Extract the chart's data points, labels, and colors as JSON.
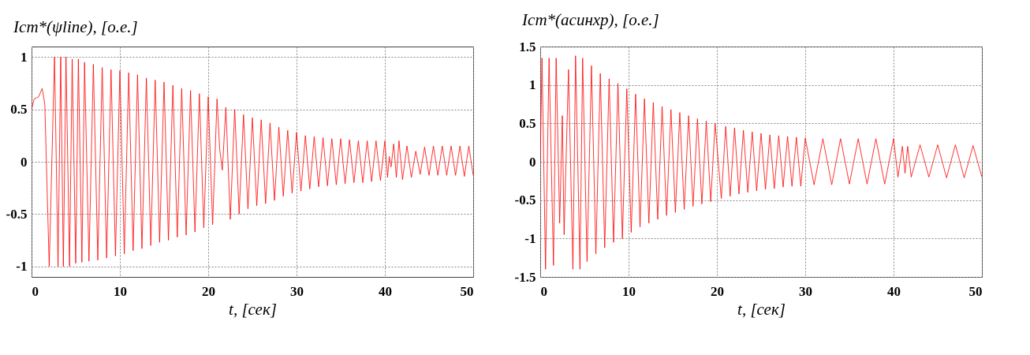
{
  "chart_data": [
    {
      "type": "line",
      "ylabel": "Icm*(ψline), [о.е.]",
      "xlabel": "t, [сек]",
      "xlim": [
        0,
        50
      ],
      "xticks": [
        0,
        10,
        20,
        30,
        40,
        50
      ],
      "ylim": [
        -1.1,
        1.1
      ],
      "yticks": [
        -1,
        -0.5,
        0,
        0.5,
        1
      ],
      "grid": true,
      "series": [
        {
          "color": "#ff0000",
          "x": [
            0,
            0.3,
            0.8,
            1.2,
            1.5,
            2.0,
            2.6,
            3.0,
            3.3,
            3.6,
            3.9,
            4.3,
            4.6,
            5.0,
            5.3,
            5.7,
            6.0,
            6.5,
            7.0,
            7.5,
            8.0,
            8.5,
            9.0,
            9.5,
            10,
            10.5,
            11,
            11.5,
            12,
            12.5,
            13,
            13.5,
            14,
            14.5,
            15,
            15.5,
            16,
            16.5,
            17,
            17.5,
            18,
            18.5,
            19,
            19.5,
            20,
            20.5,
            21,
            21.3,
            21.6,
            22,
            22.5,
            23,
            23.5,
            24,
            24.5,
            25,
            25.5,
            26,
            26.5,
            27,
            27.5,
            28,
            28.5,
            29,
            29.5,
            30,
            30.5,
            31,
            31.5,
            32,
            32.5,
            33,
            33.5,
            34,
            34.5,
            35,
            35.5,
            36,
            36.5,
            37,
            37.5,
            38,
            38.5,
            39,
            39.5,
            40,
            40.3,
            40.5,
            40.7,
            41,
            41.3,
            41.6,
            42,
            42.5,
            43,
            43.5,
            44,
            44.5,
            45,
            45.5,
            46,
            46.5,
            47,
            47.5,
            48,
            48.5,
            49,
            49.5,
            50
          ],
          "values": [
            0.5,
            0.6,
            0.62,
            0.7,
            0.55,
            -1.0,
            1.0,
            -1.0,
            1.0,
            -1.0,
            1.0,
            -1.0,
            0.98,
            -0.97,
            0.98,
            -0.96,
            0.95,
            -0.95,
            0.93,
            -0.94,
            0.9,
            -0.92,
            0.88,
            -0.9,
            0.87,
            -0.88,
            0.85,
            -0.85,
            0.83,
            -0.83,
            0.8,
            -0.8,
            0.78,
            -0.77,
            0.76,
            -0.75,
            0.73,
            -0.72,
            0.7,
            -0.7,
            0.68,
            -0.67,
            0.65,
            -0.63,
            0.62,
            -0.6,
            0.6,
            0.12,
            -0.08,
            0.52,
            -0.55,
            0.5,
            -0.5,
            0.45,
            -0.45,
            0.42,
            -0.42,
            0.4,
            -0.4,
            0.37,
            -0.37,
            0.33,
            -0.33,
            0.3,
            -0.3,
            0.28,
            -0.28,
            0.25,
            -0.26,
            0.24,
            -0.24,
            0.23,
            -0.23,
            0.22,
            -0.22,
            0.22,
            -0.21,
            0.21,
            -0.2,
            0.2,
            -0.2,
            0.2,
            -0.19,
            0.2,
            -0.18,
            0.2,
            -0.15,
            0.05,
            -0.05,
            0.17,
            -0.15,
            0.2,
            -0.17,
            0.15,
            -0.15,
            0.1,
            -0.12,
            0.14,
            -0.13,
            0.15,
            -0.13,
            0.15,
            -0.13,
            0.15,
            -0.13,
            0.15,
            -0.14,
            0.15,
            -0.13
          ]
        }
      ]
    },
    {
      "type": "line",
      "ylabel": "Icm*(асинхр), [о.е.]",
      "xlabel": "t, [сек]",
      "xlim": [
        0,
        50
      ],
      "xticks": [
        0,
        10,
        20,
        30,
        40,
        50
      ],
      "ylim": [
        -1.5,
        1.5
      ],
      "yticks": [
        -1.5,
        -1,
        -0.5,
        0,
        0.5,
        1,
        1.5
      ],
      "grid": true,
      "series": [
        {
          "color": "#ff0000",
          "x": [
            0,
            0.2,
            0.6,
            1.0,
            1.5,
            1.8,
            2.2,
            2.5,
            2.7,
            3.2,
            3.7,
            4.0,
            4.5,
            4.8,
            5.3,
            5.8,
            6.3,
            6.8,
            7.3,
            7.8,
            8.3,
            8.8,
            9.3,
            9.8,
            10.3,
            10.8,
            11.3,
            11.8,
            12.3,
            12.8,
            13.3,
            13.8,
            14.3,
            14.8,
            15.3,
            15.8,
            16.3,
            16.8,
            17.3,
            17.8,
            18.3,
            18.8,
            19.3,
            19.8,
            20.5,
            21,
            21.5,
            22,
            22.5,
            23,
            23.5,
            24,
            24.5,
            25,
            25.5,
            26,
            26.5,
            27,
            27.5,
            28,
            28.5,
            29,
            29.5,
            30,
            31,
            32,
            33,
            34,
            35,
            36,
            37,
            38,
            39,
            40,
            40.5,
            41,
            41.3,
            41.6,
            42,
            43,
            44,
            45,
            46,
            47,
            48,
            49,
            50
          ],
          "values": [
            0,
            1.35,
            -1.4,
            1.35,
            -1.35,
            1.35,
            -0.8,
            0.6,
            -0.95,
            1.2,
            -1.4,
            1.38,
            -1.4,
            1.35,
            -1.3,
            1.25,
            -1.2,
            1.15,
            -1.12,
            1.08,
            -1.05,
            1.02,
            -1.0,
            0.95,
            -0.92,
            0.88,
            -0.85,
            0.82,
            -0.8,
            0.77,
            -0.75,
            0.72,
            -0.7,
            0.68,
            -0.66,
            0.64,
            -0.62,
            0.6,
            -0.58,
            0.56,
            -0.55,
            0.53,
            -0.52,
            0.5,
            -0.48,
            0.46,
            -0.45,
            0.44,
            -0.42,
            0.41,
            -0.4,
            0.39,
            -0.38,
            0.37,
            -0.36,
            0.35,
            -0.35,
            0.34,
            -0.33,
            0.33,
            -0.32,
            0.32,
            -0.32,
            0.31,
            -0.3,
            0.3,
            -0.3,
            0.3,
            -0.29,
            0.3,
            -0.29,
            0.3,
            -0.29,
            0.3,
            -0.2,
            0.2,
            -0.15,
            0.2,
            -0.2,
            0.22,
            -0.2,
            0.22,
            -0.21,
            0.22,
            -0.21,
            0.21,
            -0.2
          ]
        }
      ]
    }
  ]
}
